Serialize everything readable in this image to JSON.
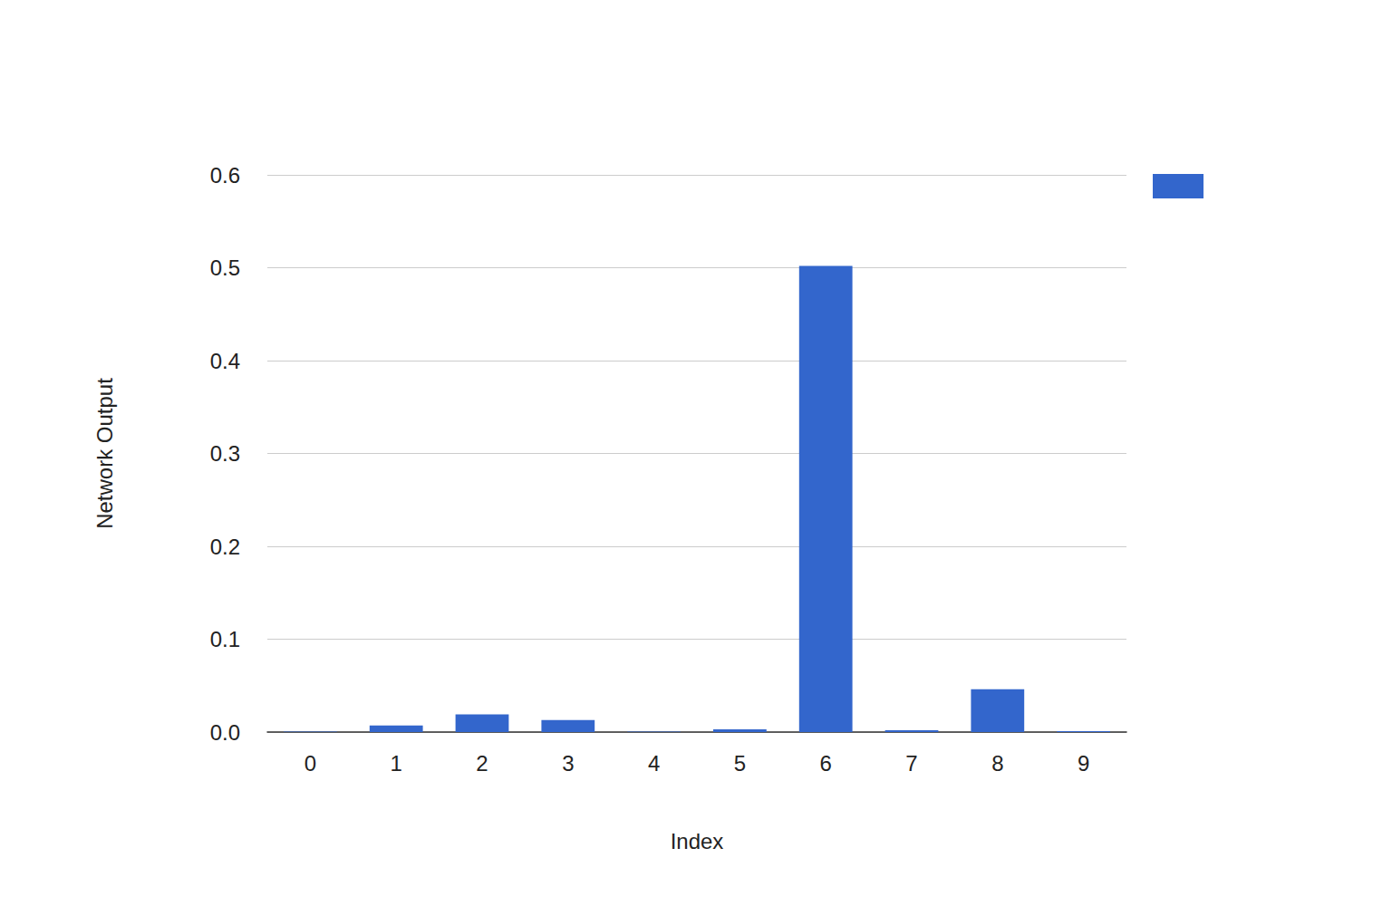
{
  "chart_data": {
    "type": "bar",
    "x_label": "Index",
    "y_label": "Network Output",
    "categories": [
      "0",
      "1",
      "2",
      "3",
      "4",
      "5",
      "6",
      "7",
      "8",
      "9"
    ],
    "values": [
      0.0005,
      0.007,
      0.019,
      0.013,
      0.0005,
      0.003,
      0.502,
      0.002,
      0.046,
      0.001
    ],
    "color": "#3366cc",
    "ylim": [
      0,
      0.6
    ],
    "yticks": [
      {
        "value": 0,
        "label": "0.0"
      },
      0.1,
      0.2,
      0.3,
      0.4,
      0.5,
      0.6
    ],
    "grid": true,
    "legend": "right"
  }
}
